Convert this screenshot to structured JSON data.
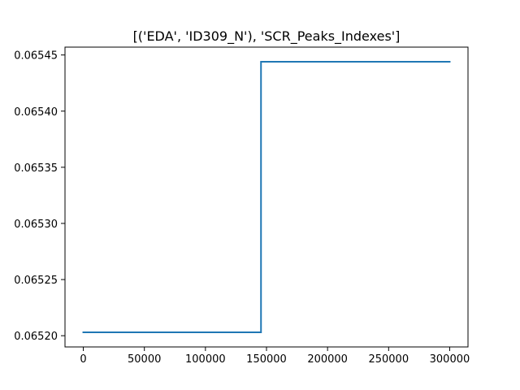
{
  "chart_data": {
    "type": "line",
    "title": "[('EDA', 'ID309_N'), 'SCR_Peaks_Indexes']",
    "xlabel": "",
    "ylabel": "",
    "xlim": [
      -15000,
      315000
    ],
    "ylim": [
      0.06519,
      0.065457
    ],
    "x_ticks": [
      0,
      50000,
      100000,
      150000,
      200000,
      250000,
      300000
    ],
    "x_tick_labels": [
      "0",
      "50000",
      "100000",
      "150000",
      "200000",
      "250000",
      "300000"
    ],
    "y_ticks": [
      0.0652,
      0.06525,
      0.0653,
      0.06535,
      0.0654,
      0.06545
    ],
    "y_tick_labels": [
      "0.06520",
      "0.06525",
      "0.06530",
      "0.06535",
      "0.06540",
      "0.06545"
    ],
    "grid": false,
    "series": [
      {
        "color": "#1f77b4",
        "x": [
          0,
          145500,
          145500,
          300000
        ],
        "y": [
          0.065203,
          0.065203,
          0.065444,
          0.065444
        ]
      }
    ]
  }
}
